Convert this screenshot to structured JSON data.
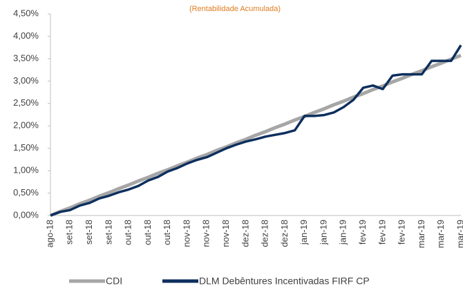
{
  "chart_data": {
    "type": "line",
    "title": "(Rentabilidade Acumulada)",
    "categories": [
      "ago-18",
      null,
      "set-18",
      null,
      "set-18",
      null,
      "set-18",
      null,
      "out-18",
      null,
      "out-18",
      null,
      "out-18",
      null,
      "nov-18",
      null,
      "nov-18",
      null,
      "nov-18",
      null,
      "dez-18",
      null,
      "dez-18",
      null,
      "dez-18",
      null,
      "jan-19",
      null,
      "jan-19",
      null,
      "jan-19",
      null,
      "fev-19",
      null,
      "fev-19",
      null,
      "fev-19",
      null,
      "mar-19",
      null,
      "mar-19",
      null,
      "mar-19"
    ],
    "series": [
      {
        "name": "CDI",
        "color": "#a6a6a6",
        "values": [
          0,
          0.09,
          0.17,
          0.26,
          0.34,
          0.43,
          0.51,
          0.6,
          0.68,
          0.77,
          0.85,
          0.94,
          1.02,
          1.11,
          1.19,
          1.28,
          1.36,
          1.45,
          1.53,
          1.62,
          1.7,
          1.79,
          1.87,
          1.96,
          2.04,
          2.13,
          2.21,
          2.3,
          2.38,
          2.47,
          2.55,
          2.64,
          2.72,
          2.81,
          2.89,
          2.98,
          3.06,
          3.15,
          3.23,
          3.32,
          3.4,
          3.49,
          3.57
        ]
      },
      {
        "name": "DLM Debêntures Incentivadas FIRF CP",
        "color": "#0d2f5e",
        "values": [
          0,
          0.08,
          0.12,
          0.22,
          0.28,
          0.38,
          0.44,
          0.52,
          0.58,
          0.66,
          0.78,
          0.86,
          0.98,
          1.06,
          1.16,
          1.24,
          1.3,
          1.4,
          1.5,
          1.58,
          1.65,
          1.7,
          1.76,
          1.8,
          1.84,
          1.9,
          2.22,
          2.22,
          2.24,
          2.3,
          2.42,
          2.58,
          2.85,
          2.9,
          2.82,
          3.12,
          3.15,
          3.15,
          3.15,
          3.45,
          3.45,
          3.45,
          3.8
        ]
      }
    ],
    "ylim": [
      0,
      4.5
    ],
    "yticks": [
      {
        "value": 0,
        "label": "0,00%"
      },
      {
        "value": 0.5,
        "label": "0,50%"
      },
      {
        "value": 1,
        "label": "1,00%"
      },
      {
        "value": 1.5,
        "label": "1,50%"
      },
      {
        "value": 2,
        "label": "2,00%"
      },
      {
        "value": 2.5,
        "label": "2,50%"
      },
      {
        "value": 3,
        "label": "3,00%"
      },
      {
        "value": 3.5,
        "label": "3,50%"
      },
      {
        "value": 4,
        "label": "4,00%"
      },
      {
        "value": 4.5,
        "label": "4,50%"
      }
    ],
    "legend": "bottom"
  }
}
